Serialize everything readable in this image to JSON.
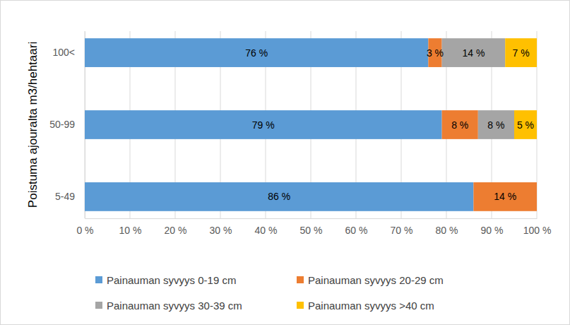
{
  "chart_data": {
    "type": "bar",
    "orientation": "horizontal",
    "stacked": true,
    "data_labels": true,
    "grid": true,
    "legend": "bottom",
    "y_label": "Poistuma ajouralta m3/hehtaari",
    "categories": [
      "100<",
      "50-99",
      "5-49"
    ],
    "series": [
      {
        "name": "Painauman syvyys 0-19 cm",
        "color": "#5B9BD5",
        "values": [
          76,
          79,
          86
        ],
        "value_labels": [
          "76 %",
          "79 %",
          "86 %"
        ]
      },
      {
        "name": "Painauman syvyys 20-29 cm",
        "color": "#ED7D31",
        "values": [
          3,
          8,
          14
        ],
        "value_labels": [
          "3 %",
          "8 %",
          "14 %"
        ]
      },
      {
        "name": "Painauman syvyys 30-39 cm",
        "color": "#A5A5A5",
        "values": [
          14,
          8,
          null
        ],
        "value_labels": [
          "14 %",
          "8 %",
          null
        ]
      },
      {
        "name": "Painauman syvyys >40 cm",
        "color": "#FFC000",
        "values": [
          7,
          5,
          null
        ],
        "value_labels": [
          "7 %",
          "5 %",
          null
        ]
      }
    ],
    "xlim": [
      0,
      100
    ],
    "xticks": [
      {
        "value": 0,
        "label": "0 %"
      },
      {
        "value": 10,
        "label": "10 %"
      },
      {
        "value": 20,
        "label": "20 %"
      },
      {
        "value": 30,
        "label": "30 %"
      },
      {
        "value": 40,
        "label": "40 %"
      },
      {
        "value": 50,
        "label": "50 %"
      },
      {
        "value": 60,
        "label": "60 %"
      },
      {
        "value": 70,
        "label": "70 %"
      },
      {
        "value": 80,
        "label": "80 %"
      },
      {
        "value": 90,
        "label": "90 %"
      },
      {
        "value": 100,
        "label": "100 %"
      }
    ]
  }
}
